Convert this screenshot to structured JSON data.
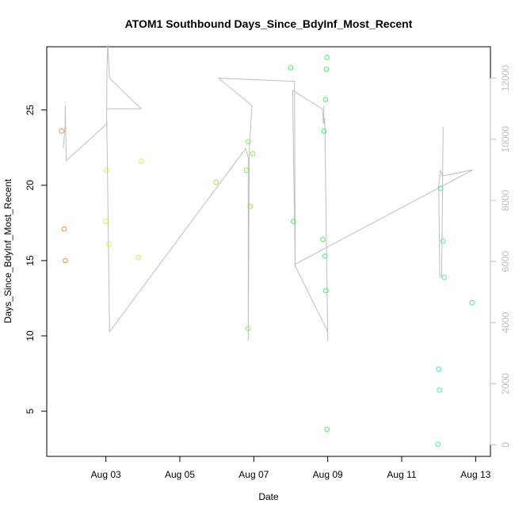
{
  "chart_data": {
    "type": "scatter",
    "title": "ATOM1 Southbound Days_Since_BdyInf_Most_Recent",
    "xlabel": "Date",
    "ylabel": "Days_Since_BdyInf_Most_Recent",
    "x_tick_labels": [
      "Aug 03",
      "Aug 05",
      "Aug 07",
      "Aug 09",
      "Aug 11",
      "Aug 13"
    ],
    "x_tick_values": [
      3,
      5,
      7,
      9,
      11,
      13
    ],
    "xlim": [
      1.4,
      13.4
    ],
    "ylim": [
      2.0,
      29.2
    ],
    "y_ticks": [
      5,
      10,
      15,
      20,
      25
    ],
    "y2_ticks": [
      0,
      2000,
      4000,
      6000,
      8000,
      10000,
      12000
    ],
    "y2lim": [
      -380,
      13030
    ],
    "grid": false,
    "points": [
      {
        "x": 1.8,
        "y": 23.6,
        "color": "#f28c3c"
      },
      {
        "x": 1.87,
        "y": 17.1,
        "color": "#f28c3c"
      },
      {
        "x": 1.9,
        "y": 15.0,
        "color": "#f28c3c"
      },
      {
        "x": 3.02,
        "y": 21.0,
        "color": "#e0e84a"
      },
      {
        "x": 3.0,
        "y": 17.6,
        "color": "#e0e84a"
      },
      {
        "x": 3.08,
        "y": 16.1,
        "color": "#e0e84a"
      },
      {
        "x": 3.88,
        "y": 15.2,
        "color": "#e0e84a"
      },
      {
        "x": 3.96,
        "y": 21.6,
        "color": "#e0e84a"
      },
      {
        "x": 5.98,
        "y": 20.2,
        "color": "#a8e84a"
      },
      {
        "x": 6.8,
        "y": 21.0,
        "color": "#8ee84a"
      },
      {
        "x": 6.85,
        "y": 22.9,
        "color": "#8ee84a"
      },
      {
        "x": 6.97,
        "y": 22.1,
        "color": "#8ee84a"
      },
      {
        "x": 6.9,
        "y": 18.6,
        "color": "#8ee84a"
      },
      {
        "x": 6.85,
        "y": 10.5,
        "color": "#8ee84a"
      },
      {
        "x": 8.0,
        "y": 27.8,
        "color": "#4ae86a"
      },
      {
        "x": 8.07,
        "y": 17.6,
        "color": "#4ae86a"
      },
      {
        "x": 8.98,
        "y": 28.5,
        "color": "#4ae86a"
      },
      {
        "x": 8.96,
        "y": 27.7,
        "color": "#4ae86a"
      },
      {
        "x": 8.94,
        "y": 25.7,
        "color": "#4ae86a"
      },
      {
        "x": 8.9,
        "y": 23.6,
        "color": "#4ae86a"
      },
      {
        "x": 8.87,
        "y": 16.4,
        "color": "#4ae86a"
      },
      {
        "x": 8.92,
        "y": 15.3,
        "color": "#4ae86a"
      },
      {
        "x": 8.95,
        "y": 13.0,
        "color": "#4ae86a"
      },
      {
        "x": 8.98,
        "y": 3.8,
        "color": "#4ae86a"
      },
      {
        "x": 12.05,
        "y": 19.8,
        "color": "#4ae8b8"
      },
      {
        "x": 12.12,
        "y": 16.3,
        "color": "#4ae8b8"
      },
      {
        "x": 12.15,
        "y": 13.9,
        "color": "#4ae8b8"
      },
      {
        "x": 12.0,
        "y": 7.8,
        "color": "#4ae8b8"
      },
      {
        "x": 12.02,
        "y": 6.4,
        "color": "#4ae8b8"
      },
      {
        "x": 11.98,
        "y": 2.8,
        "color": "#4ae8b8"
      },
      {
        "x": 12.9,
        "y": 12.2,
        "color": "#4ae8b8"
      }
    ],
    "secondary_line": {
      "x": [
        1.85,
        1.9,
        1.9,
        1.93,
        3.02,
        3.03,
        3.05,
        3.1,
        3.95,
        3.02,
        3.1,
        6.78,
        6.85,
        6.85,
        6.88,
        6.95,
        6.05,
        8.1,
        8.12,
        8.05,
        8.85,
        8.88,
        8.9,
        8.88,
        8.92,
        9.0,
        9.0,
        8.1,
        12.92,
        12.1,
        12.05,
        12.0,
        12.03,
        12.08,
        12.12
      ],
      "y2": [
        9700,
        10500,
        11100,
        9300,
        10500,
        12400,
        13100,
        12000,
        11000,
        11000,
        3700,
        9700,
        9400,
        3400,
        9700,
        11100,
        12000,
        11900,
        5800,
        11600,
        11000,
        10600,
        11100,
        10500,
        10700,
        3400,
        3700,
        5900,
        9000,
        8800,
        9000,
        8500,
        5500,
        5500,
        10400
      ]
    }
  }
}
